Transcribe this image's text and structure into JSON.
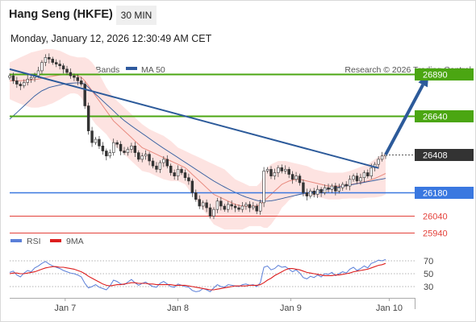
{
  "header": {
    "title": "Hang Seng (HKFE)",
    "timeframe": "30 MIN",
    "datetime": "Monday, January 12, 2026 12:30:49 AM CET"
  },
  "legend": {
    "ma20_bb_label": "MA 20 + Bollinger Bands",
    "ma50_label": "MA 50",
    "credit": "Research © 2026 Trading Central",
    "rsi_label": "RSI",
    "rsi_ma_label": "9MA"
  },
  "colors": {
    "resistance": "#4ba612",
    "current": "#333333",
    "support": "#3a78e0",
    "target": "#e3413a",
    "ma20": "#e88a7f",
    "ma50": "#2f5a9e",
    "bollinger_fill": "#fde3e1",
    "trendline": "#2c5a9a",
    "rsi": "#5b7fd8",
    "rsi_ma": "#dd1f1f"
  },
  "chart_data": [
    {
      "type": "candlestick",
      "name": "price",
      "title": "Hang Seng (HKFE)",
      "x_tick_labels": [
        "Jan 7",
        "Jan 8",
        "Jan 9",
        "Jan 10"
      ],
      "ylim": [
        25900,
        27100
      ],
      "grid": false,
      "legend_placement": "top-left",
      "series": [
        {
          "name": "Price",
          "close": [
            26880,
            26850,
            26830,
            26820,
            26840,
            26860,
            26870,
            26880,
            26910,
            26960,
            26990,
            26980,
            26960,
            26950,
            26940,
            26920,
            26900,
            26880,
            26870,
            26850,
            26830,
            26700,
            26550,
            26480,
            26500,
            26460,
            26430,
            26400,
            26420,
            26480,
            26470,
            26430,
            26420,
            26440,
            26460,
            26420,
            26380,
            26400,
            26410,
            26370,
            26340,
            26320,
            26360,
            26380,
            26340,
            26300,
            26280,
            26320,
            26300,
            26270,
            26250,
            26180,
            26140,
            26100,
            26120,
            26090,
            26040,
            26080,
            26130,
            26100,
            26080,
            26110,
            26100,
            26090,
            26080,
            26100,
            26110,
            26090,
            26100,
            26070,
            26120,
            26310,
            26320,
            26280,
            26300,
            26330,
            26310,
            26320,
            26290,
            26260,
            26280,
            26240,
            26180,
            26160,
            26190,
            26170,
            26200,
            26180,
            26210,
            26200,
            26220,
            26190,
            26210,
            26230,
            26220,
            26260,
            26280,
            26250,
            26270,
            26300,
            26280,
            26330,
            26350,
            26380,
            26400,
            26408
          ]
        },
        {
          "name": "MA 20",
          "values": [
            26850,
            26850,
            26850,
            26851,
            26852,
            26853,
            26855,
            26857,
            26860,
            26865,
            26870,
            26874,
            26878,
            26881,
            26884,
            26886,
            26887,
            26887,
            26885,
            26880,
            26870,
            26850,
            26820,
            26790,
            26760,
            26730,
            26700,
            26670,
            26640,
            26610,
            26590,
            26570,
            26550,
            26530,
            26510,
            26490,
            26470,
            26450,
            26440,
            26430,
            26420,
            26410,
            26400,
            26390,
            26380,
            26370,
            26360,
            26350,
            26340,
            26330,
            26310,
            26290,
            26270,
            26250,
            26230,
            26210,
            26190,
            26170,
            26160,
            26150,
            26140,
            26130,
            26120,
            26110,
            26105,
            26100,
            26100,
            26100,
            26100,
            26100,
            26110,
            26130,
            26150,
            26170,
            26190,
            26210,
            26230,
            26240,
            26250,
            26255,
            26260,
            26260,
            26255,
            26250,
            26245,
            26240,
            26235,
            26230,
            26225,
            26220,
            26220,
            26220,
            26220,
            26222,
            26225,
            26228,
            26232,
            26236,
            26240,
            26245,
            26250,
            26258,
            26266,
            26275,
            26285,
            26295
          ]
        },
        {
          "name": "Bollinger Upper",
          "values": [
            26960,
            26970,
            26980,
            26990,
            27000,
            27010,
            27020,
            27025,
            27030,
            27035,
            27040,
            27040,
            27040,
            27035,
            27030,
            27020,
            27010,
            27000,
            26995,
            26990,
            26990,
            26990,
            26980,
            26960,
            26930,
            26890,
            26850,
            26810,
            26780,
            26750,
            26730,
            26710,
            26690,
            26670,
            26650,
            26630,
            26610,
            26590,
            26575,
            26560,
            26550,
            26540,
            26530,
            26520,
            26505,
            26490,
            26470,
            26450,
            26440,
            26430,
            26420,
            26410,
            26400,
            26390,
            26380,
            26370,
            26360,
            26350,
            26340,
            26330,
            26320,
            26300,
            26280,
            26260,
            26250,
            26240,
            26230,
            26220,
            26220,
            26220,
            26240,
            26290,
            26330,
            26350,
            26360,
            26370,
            26370,
            26370,
            26365,
            26360,
            26355,
            26350,
            26345,
            26340,
            26330,
            26320,
            26315,
            26310,
            26305,
            26300,
            26300,
            26300,
            26300,
            26300,
            26305,
            26310,
            26318,
            26326,
            26334,
            26342,
            26350,
            26365,
            26380,
            26395,
            26410,
            26420
          ]
        },
        {
          "name": "Bollinger Lower",
          "values": [
            26740,
            26730,
            26720,
            26712,
            26704,
            26696,
            26690,
            26689,
            26690,
            26695,
            26700,
            26708,
            26716,
            26727,
            26738,
            26752,
            26764,
            26774,
            26775,
            26770,
            26750,
            26710,
            26660,
            26620,
            26590,
            26570,
            26550,
            26530,
            26500,
            26470,
            26450,
            26430,
            26410,
            26390,
            26370,
            26350,
            26330,
            26310,
            26305,
            26300,
            26290,
            26280,
            26270,
            26260,
            26255,
            26250,
            26250,
            26250,
            26240,
            26230,
            26200,
            26170,
            26140,
            26110,
            26080,
            26050,
            26020,
            25990,
            25980,
            25970,
            25960,
            25960,
            25960,
            25960,
            25960,
            25960,
            25970,
            25980,
            25980,
            25980,
            25980,
            25970,
            25970,
            25990,
            26020,
            26050,
            26090,
            26110,
            26135,
            26150,
            26165,
            26170,
            26165,
            26160,
            26160,
            26160,
            26155,
            26150,
            26145,
            26140,
            26140,
            26140,
            26140,
            26144,
            26145,
            26146,
            26146,
            26146,
            26146,
            26148,
            26150,
            26151,
            26152,
            26155,
            26160,
            26170
          ]
        },
        {
          "name": "MA 50",
          "values": [
            26620,
            26640,
            26660,
            26680,
            26700,
            26720,
            26740,
            26760,
            26775,
            26790,
            26800,
            26810,
            26815,
            26820,
            26825,
            26830,
            26833,
            26835,
            26837,
            26838,
            26838,
            26830,
            26810,
            26790,
            26770,
            26750,
            26730,
            26710,
            26690,
            26670,
            26650,
            26630,
            26612,
            26596,
            26580,
            26565,
            26550,
            26535,
            26520,
            26505,
            26490,
            26475,
            26460,
            26446,
            26432,
            26418,
            26404,
            26390,
            26376,
            26362,
            26348,
            26334,
            26320,
            26306,
            26292,
            26278,
            26264,
            26250,
            26238,
            26226,
            26214,
            26203,
            26192,
            26182,
            26172,
            26162,
            26154,
            26147,
            26140,
            26134,
            26130,
            26130,
            26130,
            26132,
            26135,
            26140,
            26145,
            26150,
            26155,
            26160,
            26165,
            26170,
            26174,
            26178,
            26182,
            26186,
            26190,
            26194,
            26198,
            26202,
            26206,
            26210,
            26214,
            26218,
            26222,
            26226,
            26230,
            26234,
            26238,
            26242,
            26246,
            26250,
            26254,
            26258,
            26262,
            26266
          ]
        }
      ],
      "horizontal_levels": [
        {
          "label": "26890",
          "value": 26890,
          "kind": "resistance"
        },
        {
          "label": "26640",
          "value": 26640,
          "kind": "resistance"
        },
        {
          "label": "26408",
          "value": 26408,
          "kind": "current"
        },
        {
          "label": "26180",
          "value": 26180,
          "kind": "support"
        },
        {
          "label": "26040",
          "value": 26040,
          "kind": "target"
        },
        {
          "label": "25940",
          "value": 25940,
          "kind": "target"
        }
      ],
      "annotations": [
        {
          "type": "trendline",
          "from": [
            0,
            26920
          ],
          "to": [
            103,
            26328
          ]
        },
        {
          "type": "forecast-arrow",
          "from": [
            105,
            26408
          ],
          "to": [
            117,
            26890
          ]
        }
      ]
    },
    {
      "type": "line",
      "name": "RSI",
      "ylim": [
        15,
        85
      ],
      "y_tick_labels": [
        "70",
        "50",
        "30"
      ],
      "reference_lines": [
        70,
        50,
        30
      ],
      "series": [
        {
          "name": "RSI",
          "values": [
            52,
            54,
            48,
            45,
            51,
            55,
            53,
            59,
            62,
            66,
            69,
            65,
            62,
            60,
            58,
            55,
            53,
            51,
            50,
            48,
            45,
            35,
            28,
            30,
            33,
            29,
            27,
            25,
            31,
            40,
            38,
            34,
            33,
            37,
            41,
            36,
            32,
            35,
            37,
            33,
            30,
            29,
            35,
            38,
            34,
            30,
            29,
            34,
            32,
            30,
            29,
            24,
            22,
            23,
            27,
            25,
            22,
            28,
            33,
            30,
            29,
            33,
            32,
            31,
            30,
            33,
            34,
            32,
            33,
            30,
            36,
            60,
            62,
            56,
            58,
            63,
            60,
            61,
            57,
            53,
            56,
            51,
            44,
            42,
            46,
            44,
            48,
            45,
            50,
            49,
            52,
            47,
            50,
            53,
            51,
            57,
            60,
            55,
            58,
            62,
            59,
            66,
            68,
            71,
            70,
            72
          ]
        },
        {
          "name": "9MA",
          "values": [
            50,
            51,
            51,
            50,
            50,
            51,
            52,
            53,
            55,
            57,
            59,
            60,
            61,
            61,
            60,
            60,
            59,
            58,
            57,
            55,
            53,
            50,
            46,
            43,
            40,
            37,
            34,
            32,
            31,
            32,
            33,
            33,
            34,
            35,
            36,
            36,
            35,
            35,
            35,
            34,
            34,
            33,
            33,
            33,
            33,
            33,
            32,
            32,
            32,
            32,
            31,
            30,
            29,
            28,
            27,
            26,
            25,
            25,
            26,
            27,
            28,
            29,
            30,
            31,
            31,
            31,
            31,
            32,
            32,
            32,
            33,
            36,
            40,
            43,
            47,
            50,
            53,
            56,
            58,
            58,
            57,
            56,
            54,
            52,
            51,
            50,
            49,
            48,
            47,
            47,
            47,
            48,
            48,
            49,
            50,
            51,
            53,
            54,
            55,
            56,
            57,
            59,
            61,
            63,
            64,
            66
          ]
        }
      ]
    }
  ]
}
